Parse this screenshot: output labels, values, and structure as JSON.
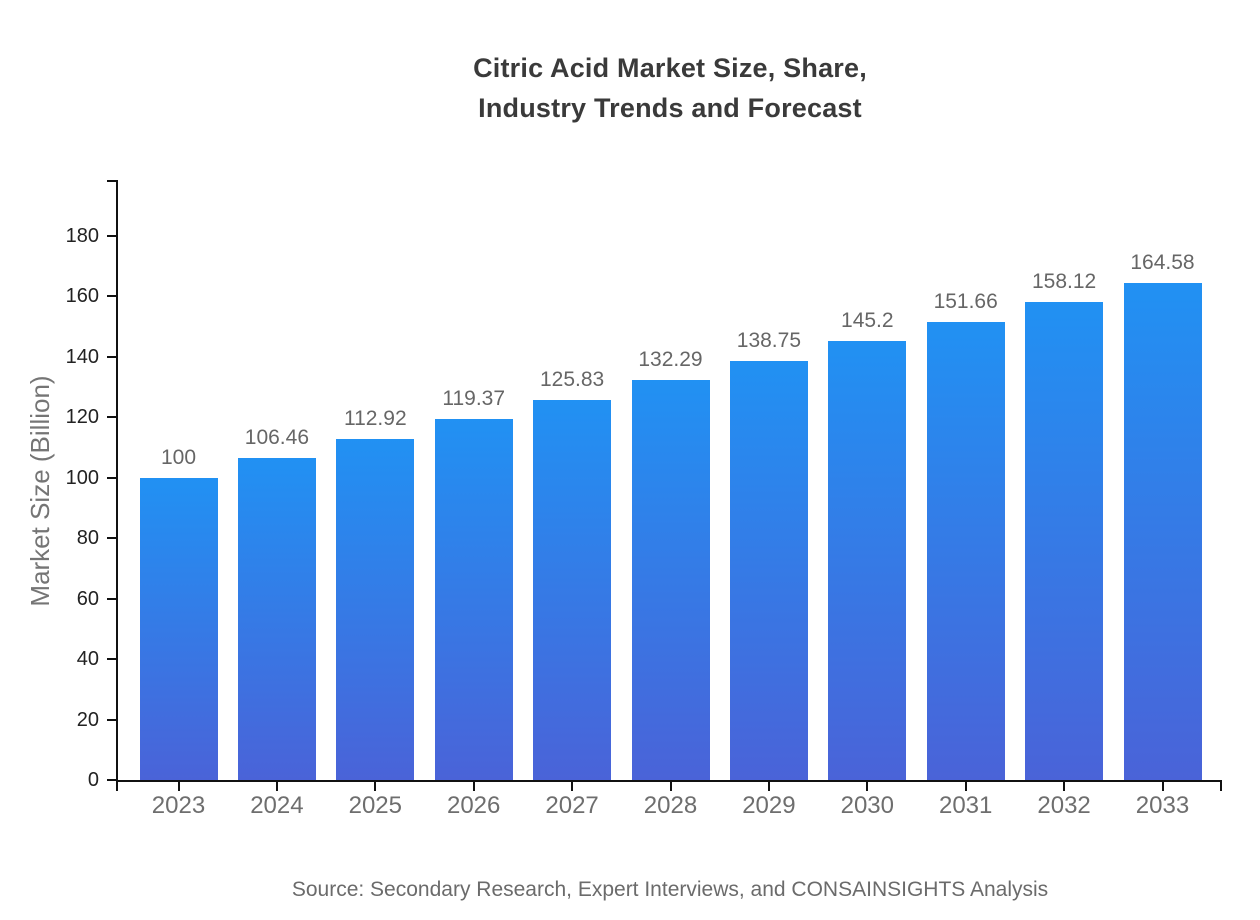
{
  "chart_data": {
    "type": "bar",
    "title_lines": [
      "Citric Acid Market Size, Share,",
      "Industry Trends and Forecast"
    ],
    "categories": [
      "2023",
      "2024",
      "2025",
      "2026",
      "2027",
      "2028",
      "2029",
      "2030",
      "2031",
      "2032",
      "2033"
    ],
    "values": [
      100,
      106.46,
      112.92,
      119.37,
      125.83,
      132.29,
      138.75,
      145.2,
      151.66,
      158.12,
      164.58
    ],
    "xlabel": "",
    "ylabel": "Market Size (Billion)",
    "yticks": [
      0,
      20,
      40,
      60,
      80,
      100,
      120,
      140,
      160,
      180
    ],
    "ylim": [
      0,
      198
    ],
    "grid": false,
    "legend": "none",
    "source": "Source: Secondary Research, Expert Interviews, and CONSAINSIGHTS Analysis",
    "colors": {
      "bar_gradient_top": "#2191f3",
      "bar_gradient_bottom": "#4a63d8",
      "axis": "#111111",
      "y_tick_label": "#222222",
      "x_tick_label": "#6e6e6e",
      "value_label": "#666666",
      "axis_title": "#757575",
      "title": "#3a3a3a",
      "source": "#6b6b6b"
    }
  }
}
